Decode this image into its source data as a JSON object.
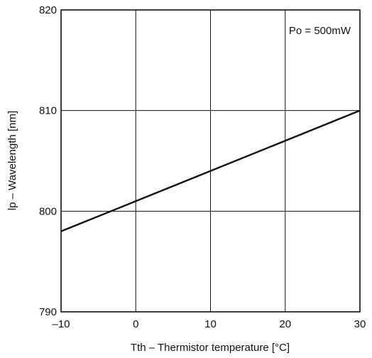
{
  "chart_data": {
    "type": "line",
    "xlabel": "Tth – Thermistor temperature [°C]",
    "ylabel": "lp – Wavelength [nm]",
    "xlim": [
      -10,
      30
    ],
    "ylim": [
      790,
      820
    ],
    "xticks": [
      -10,
      0,
      10,
      20,
      30
    ],
    "yticks": [
      790,
      800,
      810,
      820
    ],
    "xtick_labels": [
      "–10",
      "0",
      "10",
      "20",
      "30"
    ],
    "ytick_labels": [
      "790",
      "800",
      "810",
      "820"
    ],
    "grid": true,
    "annotation": "Po = 500mW",
    "series": [
      {
        "x": [
          -10,
          30
        ],
        "y": [
          798,
          810
        ]
      }
    ],
    "colors": {
      "line": "#111111",
      "grid": "#111111",
      "frame": "#111111"
    }
  }
}
